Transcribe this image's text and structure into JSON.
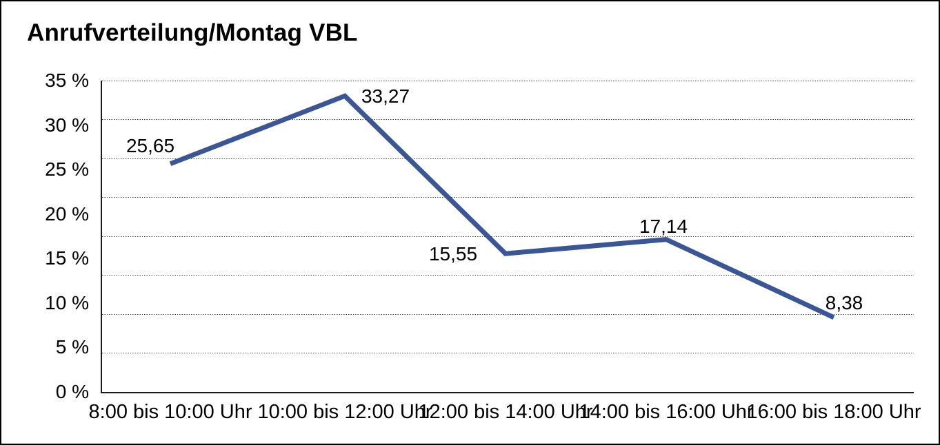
{
  "title": "Anrufverteilung/Montag VBL",
  "chart_data": {
    "type": "line",
    "title": "Anrufverteilung/Montag VBL",
    "categories": [
      "8:00 bis 10:00 Uhr",
      "10:00 bis 12:00 Uhr",
      "12:00 bis 14:00 Uhr",
      "14:00 bis 16:00 Uhr",
      "16:00 bis 18:00 Uhr"
    ],
    "values": [
      25.65,
      33.27,
      15.55,
      17.14,
      8.38
    ],
    "value_labels": [
      "25,65",
      "33,27",
      "15,55",
      "17,14",
      "8,38"
    ],
    "y_tick_labels": [
      "35 %",
      "30 %",
      "25 %",
      "20 %",
      "15 %",
      "10 %",
      "5 %",
      "0 %"
    ],
    "ylim": [
      0,
      35
    ],
    "xlabel": "",
    "ylabel": "",
    "legend": "none",
    "grid": "horizontal-dotted",
    "gridline_count": 9,
    "line_color": "#3A5697",
    "text_color": "#000000",
    "background_color": "#ffffff"
  }
}
